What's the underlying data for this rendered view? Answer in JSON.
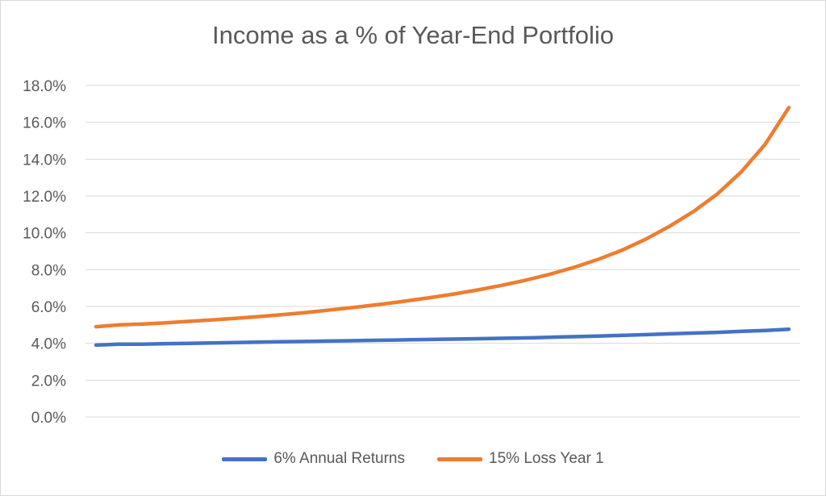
{
  "chart_data": {
    "type": "line",
    "title": "Income as a % of Year-End Portfolio",
    "xlabel": "",
    "ylabel": "",
    "ylim": [
      0,
      18
    ],
    "y_ticks": [
      "0.0%",
      "2.0%",
      "4.0%",
      "6.0%",
      "8.0%",
      "10.0%",
      "12.0%",
      "14.0%",
      "16.0%",
      "18.0%"
    ],
    "grid": true,
    "legend_position": "bottom",
    "series": [
      {
        "name": "6% Annual Returns",
        "color": "#4472c4",
        "values": [
          3.9,
          3.95,
          3.95,
          3.98,
          4.0,
          4.02,
          4.04,
          4.06,
          4.08,
          4.1,
          4.12,
          4.14,
          4.16,
          4.18,
          4.2,
          4.22,
          4.24,
          4.26,
          4.28,
          4.3,
          4.34,
          4.37,
          4.4,
          4.44,
          4.48,
          4.52,
          4.56,
          4.6,
          4.65,
          4.7,
          4.76
        ]
      },
      {
        "name": "15% Loss Year 1",
        "color": "#ed7d31",
        "values": [
          4.9,
          5.0,
          5.05,
          5.12,
          5.2,
          5.28,
          5.37,
          5.47,
          5.58,
          5.7,
          5.84,
          5.98,
          6.13,
          6.3,
          6.48,
          6.68,
          6.9,
          7.15,
          7.43,
          7.75,
          8.12,
          8.55,
          9.05,
          9.65,
          10.35,
          11.15,
          12.1,
          13.3,
          14.8,
          16.8
        ]
      }
    ]
  }
}
